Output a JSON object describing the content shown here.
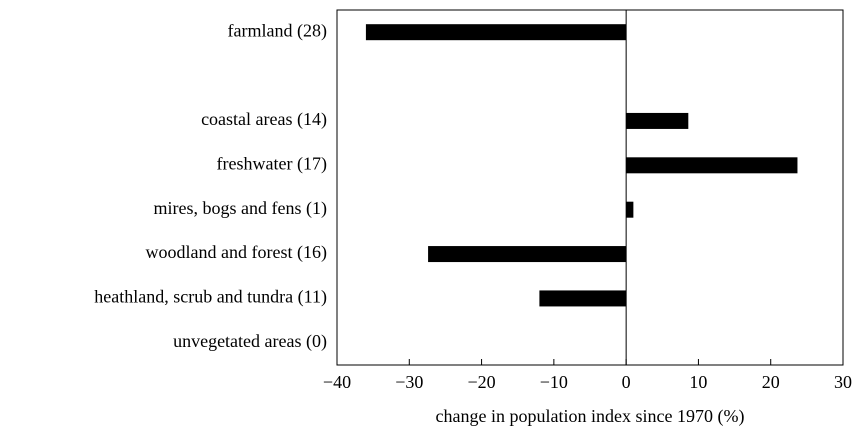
{
  "chart_data": {
    "type": "bar",
    "orientation": "horizontal",
    "x_label": "change in population index since 1970  (%)",
    "categories": [
      "farmland (28)",
      null,
      "coastal areas (14)",
      "freshwater (17)",
      "mires, bogs and fens (1)",
      "woodland and forest (16)",
      "heathland, scrub and tundra (11)",
      "unvegetated areas (0)"
    ],
    "values": [
      -36,
      null,
      8.6,
      23.7,
      1,
      -27.4,
      -12,
      null
    ],
    "color": "#000000",
    "xlim": [
      -40,
      30
    ],
    "xticks": [
      {
        "value": -40,
        "label": "−40"
      },
      {
        "value": -30,
        "label": "−30"
      },
      {
        "value": -20,
        "label": "−20"
      },
      {
        "value": -10,
        "label": "−10"
      },
      0,
      10,
      20,
      30
    ]
  }
}
